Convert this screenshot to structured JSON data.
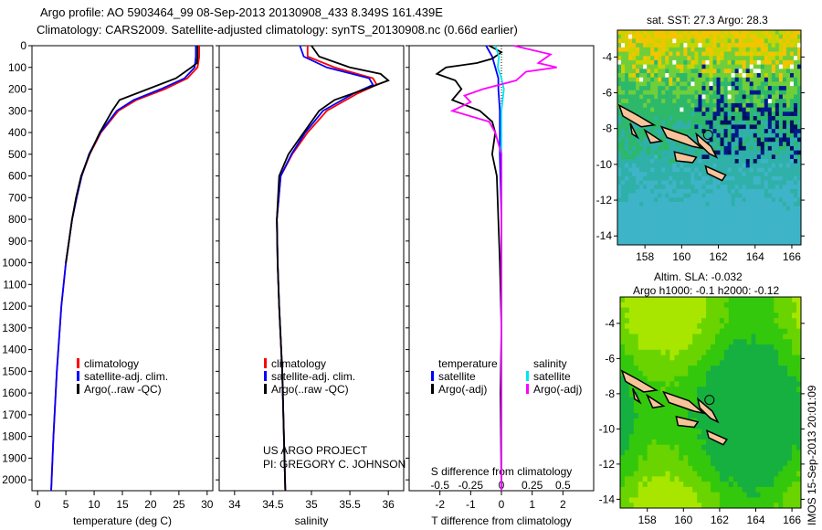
{
  "header": {
    "line1": "Argo profile: AO 5903464_99 08-Sep-2013 20130908_433 8.349S 161.439E",
    "line2": "Climatology: CARS2009. Satellite-adjusted climatology: synTS_20130908.nc (0.66d earlier)"
  },
  "credit": {
    "line1": "US ARGO PROJECT",
    "line2": "PI: GREGORY C. JOHNSON"
  },
  "timestamp": "IMOS 15-Sep-2013 20:01:09",
  "colors": {
    "clim": "#ff0000",
    "sat": "#0000ff",
    "argo": "#000000",
    "sat_s": "#00e5ee",
    "argo_s": "#ff00ff",
    "land": "#f7c49a"
  },
  "chart_data": [
    {
      "type": "line",
      "title": "",
      "xlabel": "temperature (deg C)",
      "ylabel": "depth",
      "xlim": [
        -1,
        31
      ],
      "ylim": [
        2050,
        0
      ],
      "xticks": [
        0,
        5,
        10,
        15,
        20,
        25,
        30
      ],
      "yticks": [
        0,
        100,
        200,
        300,
        400,
        500,
        600,
        700,
        800,
        900,
        1000,
        1100,
        1200,
        1300,
        1400,
        1500,
        1600,
        1700,
        1800,
        1900,
        2000
      ],
      "legend": [
        "climatology",
        "satellite-adj. clim.",
        "Argo(..raw -QC)"
      ],
      "series": [
        {
          "name": "climatology",
          "color": "#ff0000",
          "depth": [
            0,
            50,
            100,
            150,
            200,
            250,
            300,
            400,
            500,
            600,
            700,
            800,
            1000,
            1200,
            1500,
            1800,
            2050
          ],
          "values": [
            28.6,
            28.6,
            28.3,
            26.5,
            22.5,
            17.5,
            14.3,
            11.2,
            9.2,
            7.8,
            6.9,
            6.1,
            5.0,
            4.2,
            3.4,
            2.8,
            2.4
          ]
        },
        {
          "name": "satellite-adj. clim.",
          "color": "#0000ff",
          "depth": [
            0,
            50,
            100,
            150,
            200,
            250,
            300,
            400,
            500,
            600,
            700,
            800,
            1000,
            1200,
            1500,
            1800,
            2050
          ],
          "values": [
            28.0,
            28.0,
            27.8,
            26.0,
            21.8,
            17.0,
            14.0,
            11.1,
            9.1,
            7.8,
            6.9,
            6.1,
            5.0,
            4.2,
            3.4,
            2.8,
            2.4
          ]
        },
        {
          "name": "Argo(..raw -QC)",
          "color": "#000000",
          "depth": [
            0,
            50,
            80,
            100,
            150,
            200,
            250,
            300,
            400,
            500,
            600,
            700,
            800,
            1000
          ],
          "values": [
            28.3,
            28.3,
            28.2,
            27.2,
            24.5,
            19.5,
            14.5,
            13.2,
            11.0,
            9.2,
            7.7,
            6.8,
            6.1,
            5.0
          ]
        }
      ]
    },
    {
      "type": "line",
      "xlabel": "salinity",
      "xlim": [
        33.8,
        36.2
      ],
      "ylim": [
        2050,
        0
      ],
      "xticks": [
        34,
        34.5,
        35,
        35.5,
        36
      ],
      "legend": [
        "climatology",
        "satellite-adj. clim.",
        "Argo(..raw -QC)"
      ],
      "series": [
        {
          "name": "climatology",
          "color": "#ff0000",
          "depth": [
            0,
            50,
            100,
            150,
            180,
            220,
            260,
            300,
            400,
            500,
            600,
            800,
            1000,
            1200,
            1500,
            2050
          ],
          "values": [
            34.95,
            34.95,
            35.3,
            35.8,
            35.85,
            35.6,
            35.4,
            35.2,
            34.95,
            34.75,
            34.6,
            34.55,
            34.56,
            34.58,
            34.62,
            34.66
          ]
        },
        {
          "name": "satellite-adj. clim.",
          "color": "#0000ff",
          "depth": [
            0,
            50,
            100,
            150,
            180,
            220,
            260,
            300,
            400,
            500,
            600,
            800,
            1000,
            1200,
            1500,
            2050
          ],
          "values": [
            34.85,
            34.9,
            35.2,
            35.75,
            35.8,
            35.55,
            35.35,
            35.15,
            34.92,
            34.74,
            34.6,
            34.55,
            34.56,
            34.58,
            34.62,
            34.66
          ]
        },
        {
          "name": "Argo(..raw -QC)",
          "color": "#000000",
          "depth": [
            0,
            50,
            100,
            130,
            160,
            200,
            250,
            300,
            400,
            500,
            600,
            800,
            1000,
            1200,
            1500,
            2050
          ],
          "values": [
            35.0,
            35.1,
            35.5,
            35.9,
            36.0,
            35.7,
            35.3,
            35.1,
            34.9,
            34.7,
            34.58,
            34.55,
            34.56,
            34.58,
            34.62,
            34.66
          ]
        }
      ]
    },
    {
      "type": "line",
      "xlabel": "T difference from climatology",
      "x2label": "S difference from climatology",
      "xlim": [
        -3,
        3
      ],
      "x2lim": [
        -0.75,
        0.75
      ],
      "ylim": [
        2050,
        0
      ],
      "xticks": [
        -2,
        -1,
        0,
        1,
        2
      ],
      "x2ticks": [
        "-0.5",
        "-0.25",
        "0",
        "0.25",
        "0.5"
      ],
      "x2tickvals": [
        -0.5,
        -0.25,
        0,
        0.25,
        0.5
      ],
      "legend": {
        "temperature_title": "temperature",
        "salinity_title": "salinity",
        "items": [
          "satellite",
          "Argo(-adj)",
          "satellite",
          "Argo(-adj)"
        ]
      },
      "series": [
        {
          "name": "temperature satellite",
          "axis": "T",
          "color": "#0000ff",
          "depth": [
            0,
            50,
            100,
            150,
            200,
            300,
            500,
            800,
            1200,
            2050
          ],
          "values": [
            -0.5,
            -0.3,
            -0.2,
            -0.1,
            -0.1,
            -0.05,
            -0.05,
            0,
            0,
            0
          ]
        },
        {
          "name": "temperature Argo(-adj)",
          "axis": "T",
          "color": "#000000",
          "depth": [
            0,
            30,
            60,
            80,
            100,
            130,
            160,
            200,
            250,
            300,
            350,
            400,
            500,
            600,
            800,
            1000,
            1300,
            1600,
            2050
          ],
          "values": [
            -0.4,
            0,
            -0.3,
            -0.8,
            -1.8,
            -2.1,
            -1.5,
            -1.3,
            -1.6,
            -0.7,
            -0.3,
            -0.2,
            -0.3,
            -0.15,
            -0.1,
            -0.05,
            0,
            -0.03,
            0
          ]
        },
        {
          "name": "salinity satellite",
          "axis": "S",
          "color": "#00e5ee",
          "depth": [
            0,
            50,
            100,
            150,
            200,
            300,
            500,
            800,
            1200,
            2050
          ],
          "values": [
            -0.05,
            -0.02,
            -0.03,
            0.0,
            0.02,
            0.0,
            0.0,
            0.0,
            0.0,
            0.0
          ]
        },
        {
          "name": "salinity Argo(-adj)",
          "axis": "S",
          "color": "#ff00ff",
          "depth": [
            0,
            40,
            80,
            100,
            120,
            160,
            200,
            230,
            260,
            300,
            350,
            400,
            500,
            800,
            1200,
            2050
          ],
          "values": [
            0.1,
            0.4,
            0.3,
            0.45,
            0.2,
            0.12,
            -0.15,
            -0.3,
            -0.25,
            -0.4,
            -0.1,
            -0.05,
            0.0,
            0.0,
            0.0,
            0.0
          ]
        }
      ]
    },
    {
      "type": "heatmap",
      "title": "sat. SST: 27.3 Argo: 28.3",
      "xlim": [
        156.5,
        166.5
      ],
      "ylim": [
        -14.5,
        -2.5
      ],
      "xticks": [
        158,
        160,
        162,
        164,
        166
      ],
      "yticks": [
        -4,
        -6,
        -8,
        -10,
        -12,
        -14
      ],
      "argo_position": {
        "lon": 161.439,
        "lat": -8.349
      }
    },
    {
      "type": "heatmap",
      "title": "Altim. SLA: -0.032",
      "subtitle": "Argo h1000: -0.1 h2000: -0.12",
      "xlim": [
        156.5,
        166.5
      ],
      "ylim": [
        -14.5,
        -2.5
      ],
      "xticks": [
        158,
        160,
        162,
        164,
        166
      ],
      "yticks": [
        -4,
        -6,
        -8,
        -10,
        -12,
        -14
      ],
      "argo_position": {
        "lon": 161.439,
        "lat": -8.349
      }
    }
  ]
}
